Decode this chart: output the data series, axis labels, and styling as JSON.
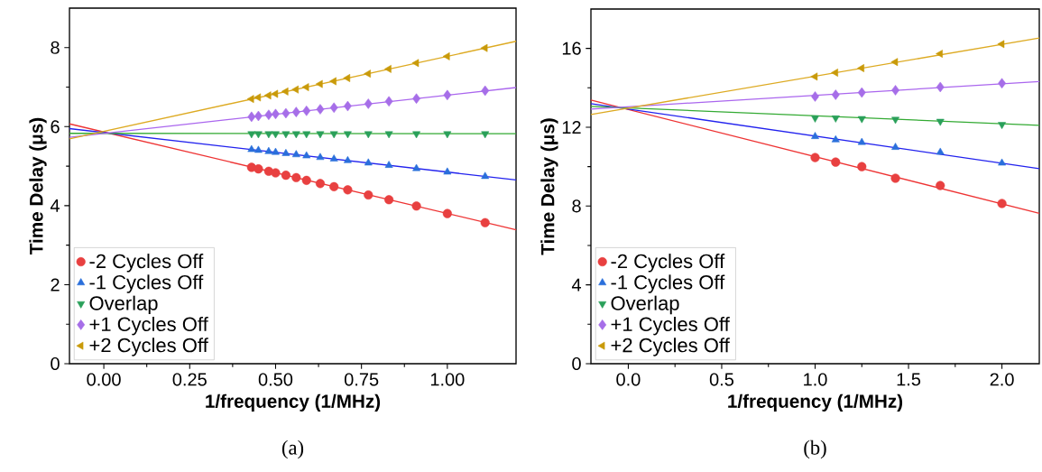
{
  "chart_data": [
    {
      "type": "scatter",
      "xlabel": "1/frequency (1/MHz)",
      "ylabel": "Time Delay (μs)",
      "annotations": [
        "(a)"
      ],
      "xlim": [
        -0.1,
        1.2
      ],
      "ylim": [
        0,
        9
      ],
      "xticks": [
        {
          "value": 0,
          "label": "0.00"
        },
        {
          "value": 0.25,
          "label": "0.25"
        },
        {
          "value": 0.5,
          "label": "0.50"
        },
        {
          "value": 0.75,
          "label": "0.75"
        },
        {
          "value": 1,
          "label": "1.00"
        }
      ],
      "yticks": [
        0,
        2,
        4,
        6,
        8
      ],
      "legend": "bottom left",
      "x": [
        0.43,
        0.45,
        0.48,
        0.5,
        0.53,
        0.56,
        0.59,
        0.63,
        0.67,
        0.71,
        0.77,
        0.83,
        0.91,
        1.0,
        1.11
      ],
      "series": [
        {
          "type": "line",
          "color": "#ee3333",
          "marker": "none",
          "x": [
            -0.1,
            1.2
          ],
          "values": [
            6.07,
            3.39
          ]
        },
        {
          "type": "line",
          "color": "#2222ee",
          "marker": "none",
          "x": [
            -0.1,
            1.2
          ],
          "values": [
            5.95,
            4.65
          ]
        },
        {
          "type": "line",
          "color": "#33aa33",
          "marker": "none",
          "x": [
            -0.1,
            1.2
          ],
          "values": [
            5.83,
            5.82
          ]
        },
        {
          "type": "line",
          "color": "#aa66ee",
          "marker": "none",
          "x": [
            -0.1,
            1.2
          ],
          "values": [
            5.73,
            6.99
          ]
        },
        {
          "type": "line",
          "color": "#ddaa22",
          "marker": "none",
          "x": [
            -0.1,
            1.2
          ],
          "values": [
            5.69,
            8.16
          ]
        },
        {
          "name": "-2 Cycles Off",
          "color": "#e84040",
          "marker": "circle",
          "values": [
            4.97,
            4.93,
            4.87,
            4.83,
            4.77,
            4.71,
            4.64,
            4.56,
            4.48,
            4.4,
            4.27,
            4.15,
            3.99,
            3.8,
            3.57
          ]
        },
        {
          "name": "-1 Cycles Off",
          "color": "#2a6fdb",
          "marker": "triangle",
          "values": [
            5.42,
            5.4,
            5.37,
            5.35,
            5.32,
            5.29,
            5.26,
            5.22,
            5.18,
            5.14,
            5.08,
            5.02,
            4.94,
            4.85,
            4.74
          ]
        },
        {
          "name": "Overlap",
          "color": "#2aa05a",
          "marker": "triangle-down",
          "values": [
            5.82,
            5.82,
            5.82,
            5.82,
            5.82,
            5.82,
            5.82,
            5.82,
            5.82,
            5.82,
            5.82,
            5.82,
            5.82,
            5.82,
            5.82
          ]
        },
        {
          "name": "+1 Cycles Off",
          "color": "#a66ee8",
          "marker": "diamond",
          "values": [
            6.25,
            6.27,
            6.3,
            6.32,
            6.34,
            6.37,
            6.4,
            6.44,
            6.48,
            6.52,
            6.58,
            6.64,
            6.71,
            6.8,
            6.91
          ]
        },
        {
          "name": "+2 Cycles Off",
          "color": "#c99a0a",
          "marker": "triangle-left",
          "values": [
            6.7,
            6.74,
            6.79,
            6.83,
            6.89,
            6.94,
            7.0,
            7.08,
            7.15,
            7.23,
            7.34,
            7.46,
            7.61,
            7.78,
            7.99
          ]
        }
      ]
    },
    {
      "type": "scatter",
      "xlabel": "1/frequency (1/MHz)",
      "ylabel": "Time Delay (μs)",
      "annotations": [
        "(b)"
      ],
      "xlim": [
        -0.2,
        2.2
      ],
      "ylim": [
        0,
        18
      ],
      "xticks": [
        {
          "value": 0,
          "label": "0.0"
        },
        {
          "value": 0.5,
          "label": "0.5"
        },
        {
          "value": 1,
          "label": "1.0"
        },
        {
          "value": 1.5,
          "label": "1.5"
        },
        {
          "value": 2,
          "label": "2.0"
        }
      ],
      "yticks": [
        0,
        4,
        8,
        12,
        16
      ],
      "legend": "bottom left",
      "x": [
        1.0,
        1.11,
        1.25,
        1.43,
        1.67,
        2.0
      ],
      "series": [
        {
          "type": "line",
          "color": "#ee3333",
          "marker": "none",
          "x": [
            -0.2,
            2.2
          ],
          "values": [
            13.38,
            7.63
          ]
        },
        {
          "type": "line",
          "color": "#2222ee",
          "marker": "none",
          "x": [
            -0.2,
            2.2
          ],
          "values": [
            13.2,
            9.9
          ]
        },
        {
          "type": "line",
          "color": "#33aa33",
          "marker": "none",
          "x": [
            -0.2,
            2.2
          ],
          "values": [
            13.06,
            12.1
          ]
        },
        {
          "type": "line",
          "color": "#aa66ee",
          "marker": "none",
          "x": [
            -0.2,
            2.2
          ],
          "values": [
            12.92,
            14.32
          ]
        },
        {
          "type": "line",
          "color": "#ddaa22",
          "marker": "none",
          "x": [
            -0.2,
            2.2
          ],
          "values": [
            12.65,
            16.53
          ]
        },
        {
          "name": "-2 Cycles Off",
          "color": "#e84040",
          "marker": "circle",
          "values": [
            10.46,
            10.23,
            10.0,
            9.41,
            9.04,
            8.13
          ]
        },
        {
          "name": "-1 Cycles Off",
          "color": "#2a6fdb",
          "marker": "triangle",
          "values": [
            11.53,
            11.36,
            11.23,
            10.98,
            10.73,
            10.18
          ]
        },
        {
          "name": "Overlap",
          "color": "#2aa05a",
          "marker": "triangle-down",
          "values": [
            12.47,
            12.47,
            12.44,
            12.4,
            12.3,
            12.14
          ]
        },
        {
          "name": "+1 Cycles Off",
          "color": "#a66ee8",
          "marker": "diamond",
          "values": [
            13.56,
            13.65,
            13.76,
            13.88,
            14.04,
            14.23
          ]
        },
        {
          "name": "+2 Cycles Off",
          "color": "#c99a0a",
          "marker": "triangle-left",
          "values": [
            14.57,
            14.77,
            15.0,
            15.31,
            15.73,
            16.22
          ]
        }
      ]
    }
  ]
}
